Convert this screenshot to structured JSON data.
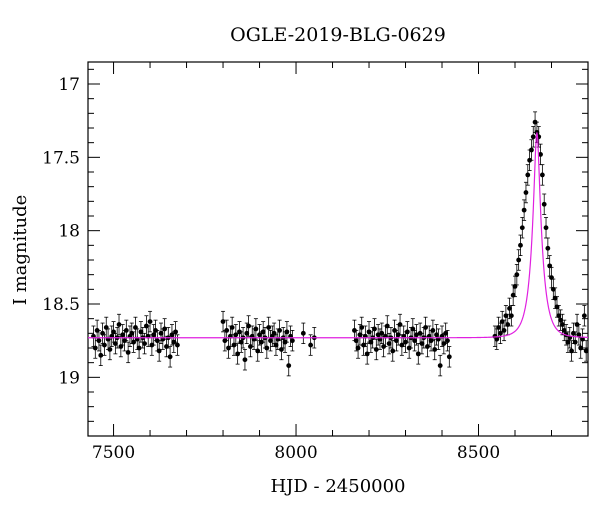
{
  "chart_data": {
    "type": "scatter",
    "title": "OGLE-2019-BLG-0629",
    "xlabel": "HJD - 2450000",
    "ylabel": "I magnitude",
    "xlim": [
      7430,
      8800
    ],
    "ylim": [
      19.4,
      16.85
    ],
    "y_inverted": true,
    "grid": false,
    "x_ticks": [
      7500,
      8000,
      8500
    ],
    "x_tick_labels": [
      "7500",
      "8000",
      "8500"
    ],
    "y_ticks": [
      17,
      17.5,
      18,
      18.5,
      19
    ],
    "y_tick_labels": [
      "17",
      "17.5",
      "18",
      "18.5",
      "19"
    ],
    "model": {
      "color": "#e020e0",
      "baseline": 18.73,
      "t0": 8660,
      "tE": 28,
      "u0": 0.25,
      "fs": 0.85
    },
    "series": [
      {
        "color": "#000000",
        "points": [
          [
            7445,
            18.72
          ],
          [
            7450,
            18.8
          ],
          [
            7455,
            18.68
          ],
          [
            7460,
            18.75
          ],
          [
            7465,
            18.85
          ],
          [
            7470,
            18.7
          ],
          [
            7475,
            18.78
          ],
          [
            7480,
            18.66
          ],
          [
            7485,
            18.74
          ],
          [
            7490,
            18.81
          ],
          [
            7495,
            18.72
          ],
          [
            7500,
            18.69
          ],
          [
            7505,
            18.77
          ],
          [
            7510,
            18.73
          ],
          [
            7515,
            18.64
          ],
          [
            7520,
            18.79
          ],
          [
            7525,
            18.71
          ],
          [
            7530,
            18.75
          ],
          [
            7535,
            18.68
          ],
          [
            7540,
            18.83
          ],
          [
            7545,
            18.72
          ],
          [
            7550,
            18.7
          ],
          [
            7555,
            18.76
          ],
          [
            7560,
            18.66
          ],
          [
            7565,
            18.74
          ],
          [
            7570,
            18.8
          ],
          [
            7575,
            18.69
          ],
          [
            7580,
            18.73
          ],
          [
            7585,
            18.77
          ],
          [
            7590,
            18.65
          ],
          [
            7595,
            18.72
          ],
          [
            7600,
            18.62
          ],
          [
            7605,
            18.78
          ],
          [
            7610,
            18.71
          ],
          [
            7615,
            18.68
          ],
          [
            7620,
            18.75
          ],
          [
            7625,
            18.82
          ],
          [
            7630,
            18.7
          ],
          [
            7635,
            18.74
          ],
          [
            7640,
            18.67
          ],
          [
            7645,
            18.79
          ],
          [
            7650,
            18.73
          ],
          [
            7655,
            18.86
          ],
          [
            7660,
            18.71
          ],
          [
            7665,
            18.76
          ],
          [
            7670,
            18.69
          ],
          [
            7675,
            18.78
          ],
          [
            7800,
            18.62
          ],
          [
            7805,
            18.75
          ],
          [
            7810,
            18.68
          ],
          [
            7815,
            18.8
          ],
          [
            7820,
            18.72
          ],
          [
            7825,
            18.66
          ],
          [
            7830,
            18.78
          ],
          [
            7835,
            18.71
          ],
          [
            7840,
            18.84
          ],
          [
            7845,
            18.69
          ],
          [
            7850,
            18.76
          ],
          [
            7855,
            18.73
          ],
          [
            7860,
            18.88
          ],
          [
            7865,
            18.7
          ],
          [
            7870,
            18.65
          ],
          [
            7875,
            18.79
          ],
          [
            7880,
            18.72
          ],
          [
            7885,
            18.74
          ],
          [
            7890,
            18.67
          ],
          [
            7895,
            18.82
          ],
          [
            7900,
            18.71
          ],
          [
            7905,
            18.76
          ],
          [
            7910,
            18.69
          ],
          [
            7915,
            18.73
          ],
          [
            7920,
            18.8
          ],
          [
            7925,
            18.66
          ],
          [
            7930,
            18.75
          ],
          [
            7935,
            18.72
          ],
          [
            7940,
            18.7
          ],
          [
            7945,
            18.78
          ],
          [
            7950,
            18.74
          ],
          [
            7955,
            18.68
          ],
          [
            7960,
            18.81
          ],
          [
            7965,
            18.73
          ],
          [
            7970,
            18.76
          ],
          [
            7975,
            18.69
          ],
          [
            7980,
            18.92
          ],
          [
            7985,
            18.72
          ],
          [
            7990,
            18.75
          ],
          [
            8020,
            18.7
          ],
          [
            8040,
            18.78
          ],
          [
            8050,
            18.73
          ],
          [
            8160,
            18.68
          ],
          [
            8165,
            18.75
          ],
          [
            8170,
            18.8
          ],
          [
            8175,
            18.71
          ],
          [
            8180,
            18.66
          ],
          [
            8185,
            18.78
          ],
          [
            8190,
            18.72
          ],
          [
            8195,
            18.84
          ],
          [
            8200,
            18.69
          ],
          [
            8205,
            18.76
          ],
          [
            8210,
            18.73
          ],
          [
            8215,
            18.67
          ],
          [
            8220,
            18.81
          ],
          [
            8225,
            18.71
          ],
          [
            8230,
            18.74
          ],
          [
            8235,
            18.7
          ],
          [
            8240,
            18.79
          ],
          [
            8245,
            18.72
          ],
          [
            8250,
            18.65
          ],
          [
            8255,
            18.77
          ],
          [
            8260,
            18.73
          ],
          [
            8265,
            18.82
          ],
          [
            8270,
            18.68
          ],
          [
            8275,
            18.75
          ],
          [
            8280,
            18.71
          ],
          [
            8285,
            18.64
          ],
          [
            8290,
            18.78
          ],
          [
            8295,
            18.72
          ],
          [
            8300,
            18.76
          ],
          [
            8305,
            18.69
          ],
          [
            8310,
            18.8
          ],
          [
            8315,
            18.73
          ],
          [
            8320,
            18.67
          ],
          [
            8325,
            18.75
          ],
          [
            8330,
            18.71
          ],
          [
            8335,
            18.84
          ],
          [
            8340,
            18.7
          ],
          [
            8345,
            18.77
          ],
          [
            8350,
            18.73
          ],
          [
            8355,
            18.66
          ],
          [
            8360,
            18.79
          ],
          [
            8365,
            18.72
          ],
          [
            8370,
            18.75
          ],
          [
            8375,
            18.68
          ],
          [
            8380,
            18.81
          ],
          [
            8385,
            18.71
          ],
          [
            8390,
            18.74
          ],
          [
            8395,
            18.92
          ],
          [
            8400,
            18.72
          ],
          [
            8405,
            18.77
          ],
          [
            8410,
            18.7
          ],
          [
            8415,
            18.75
          ],
          [
            8420,
            18.86
          ],
          [
            8545,
            18.72
          ],
          [
            8550,
            18.74
          ],
          [
            8555,
            18.66
          ],
          [
            8560,
            18.7
          ],
          [
            8565,
            18.62
          ],
          [
            8570,
            18.68
          ],
          [
            8575,
            18.58
          ],
          [
            8580,
            18.64
          ],
          [
            8585,
            18.53
          ],
          [
            8590,
            18.58
          ],
          [
            8595,
            18.44
          ],
          [
            8600,
            18.38
          ],
          [
            8605,
            18.3
          ],
          [
            8610,
            18.2
          ],
          [
            8615,
            18.1
          ],
          [
            8620,
            17.98
          ],
          [
            8625,
            17.86
          ],
          [
            8630,
            17.74
          ],
          [
            8635,
            17.62
          ],
          [
            8640,
            17.52
          ],
          [
            8645,
            17.45
          ],
          [
            8650,
            17.36
          ],
          [
            8655,
            17.26
          ],
          [
            8660,
            17.33
          ],
          [
            8665,
            17.36
          ],
          [
            8670,
            17.48
          ],
          [
            8675,
            17.62
          ],
          [
            8680,
            17.82
          ],
          [
            8685,
            17.98
          ],
          [
            8690,
            18.12
          ],
          [
            8695,
            18.24
          ],
          [
            8700,
            18.32
          ],
          [
            8705,
            18.4
          ],
          [
            8710,
            18.46
          ],
          [
            8715,
            18.52
          ],
          [
            8720,
            18.58
          ],
          [
            8725,
            18.61
          ],
          [
            8730,
            18.64
          ],
          [
            8735,
            18.68
          ],
          [
            8740,
            18.71
          ],
          [
            8745,
            18.76
          ],
          [
            8750,
            18.73
          ],
          [
            8755,
            18.82
          ],
          [
            8760,
            18.7
          ],
          [
            8765,
            18.76
          ],
          [
            8770,
            18.64
          ],
          [
            8775,
            18.71
          ],
          [
            8780,
            18.8
          ],
          [
            8785,
            18.74
          ],
          [
            8790,
            18.58
          ],
          [
            8795,
            18.82
          ]
        ]
      }
    ]
  }
}
